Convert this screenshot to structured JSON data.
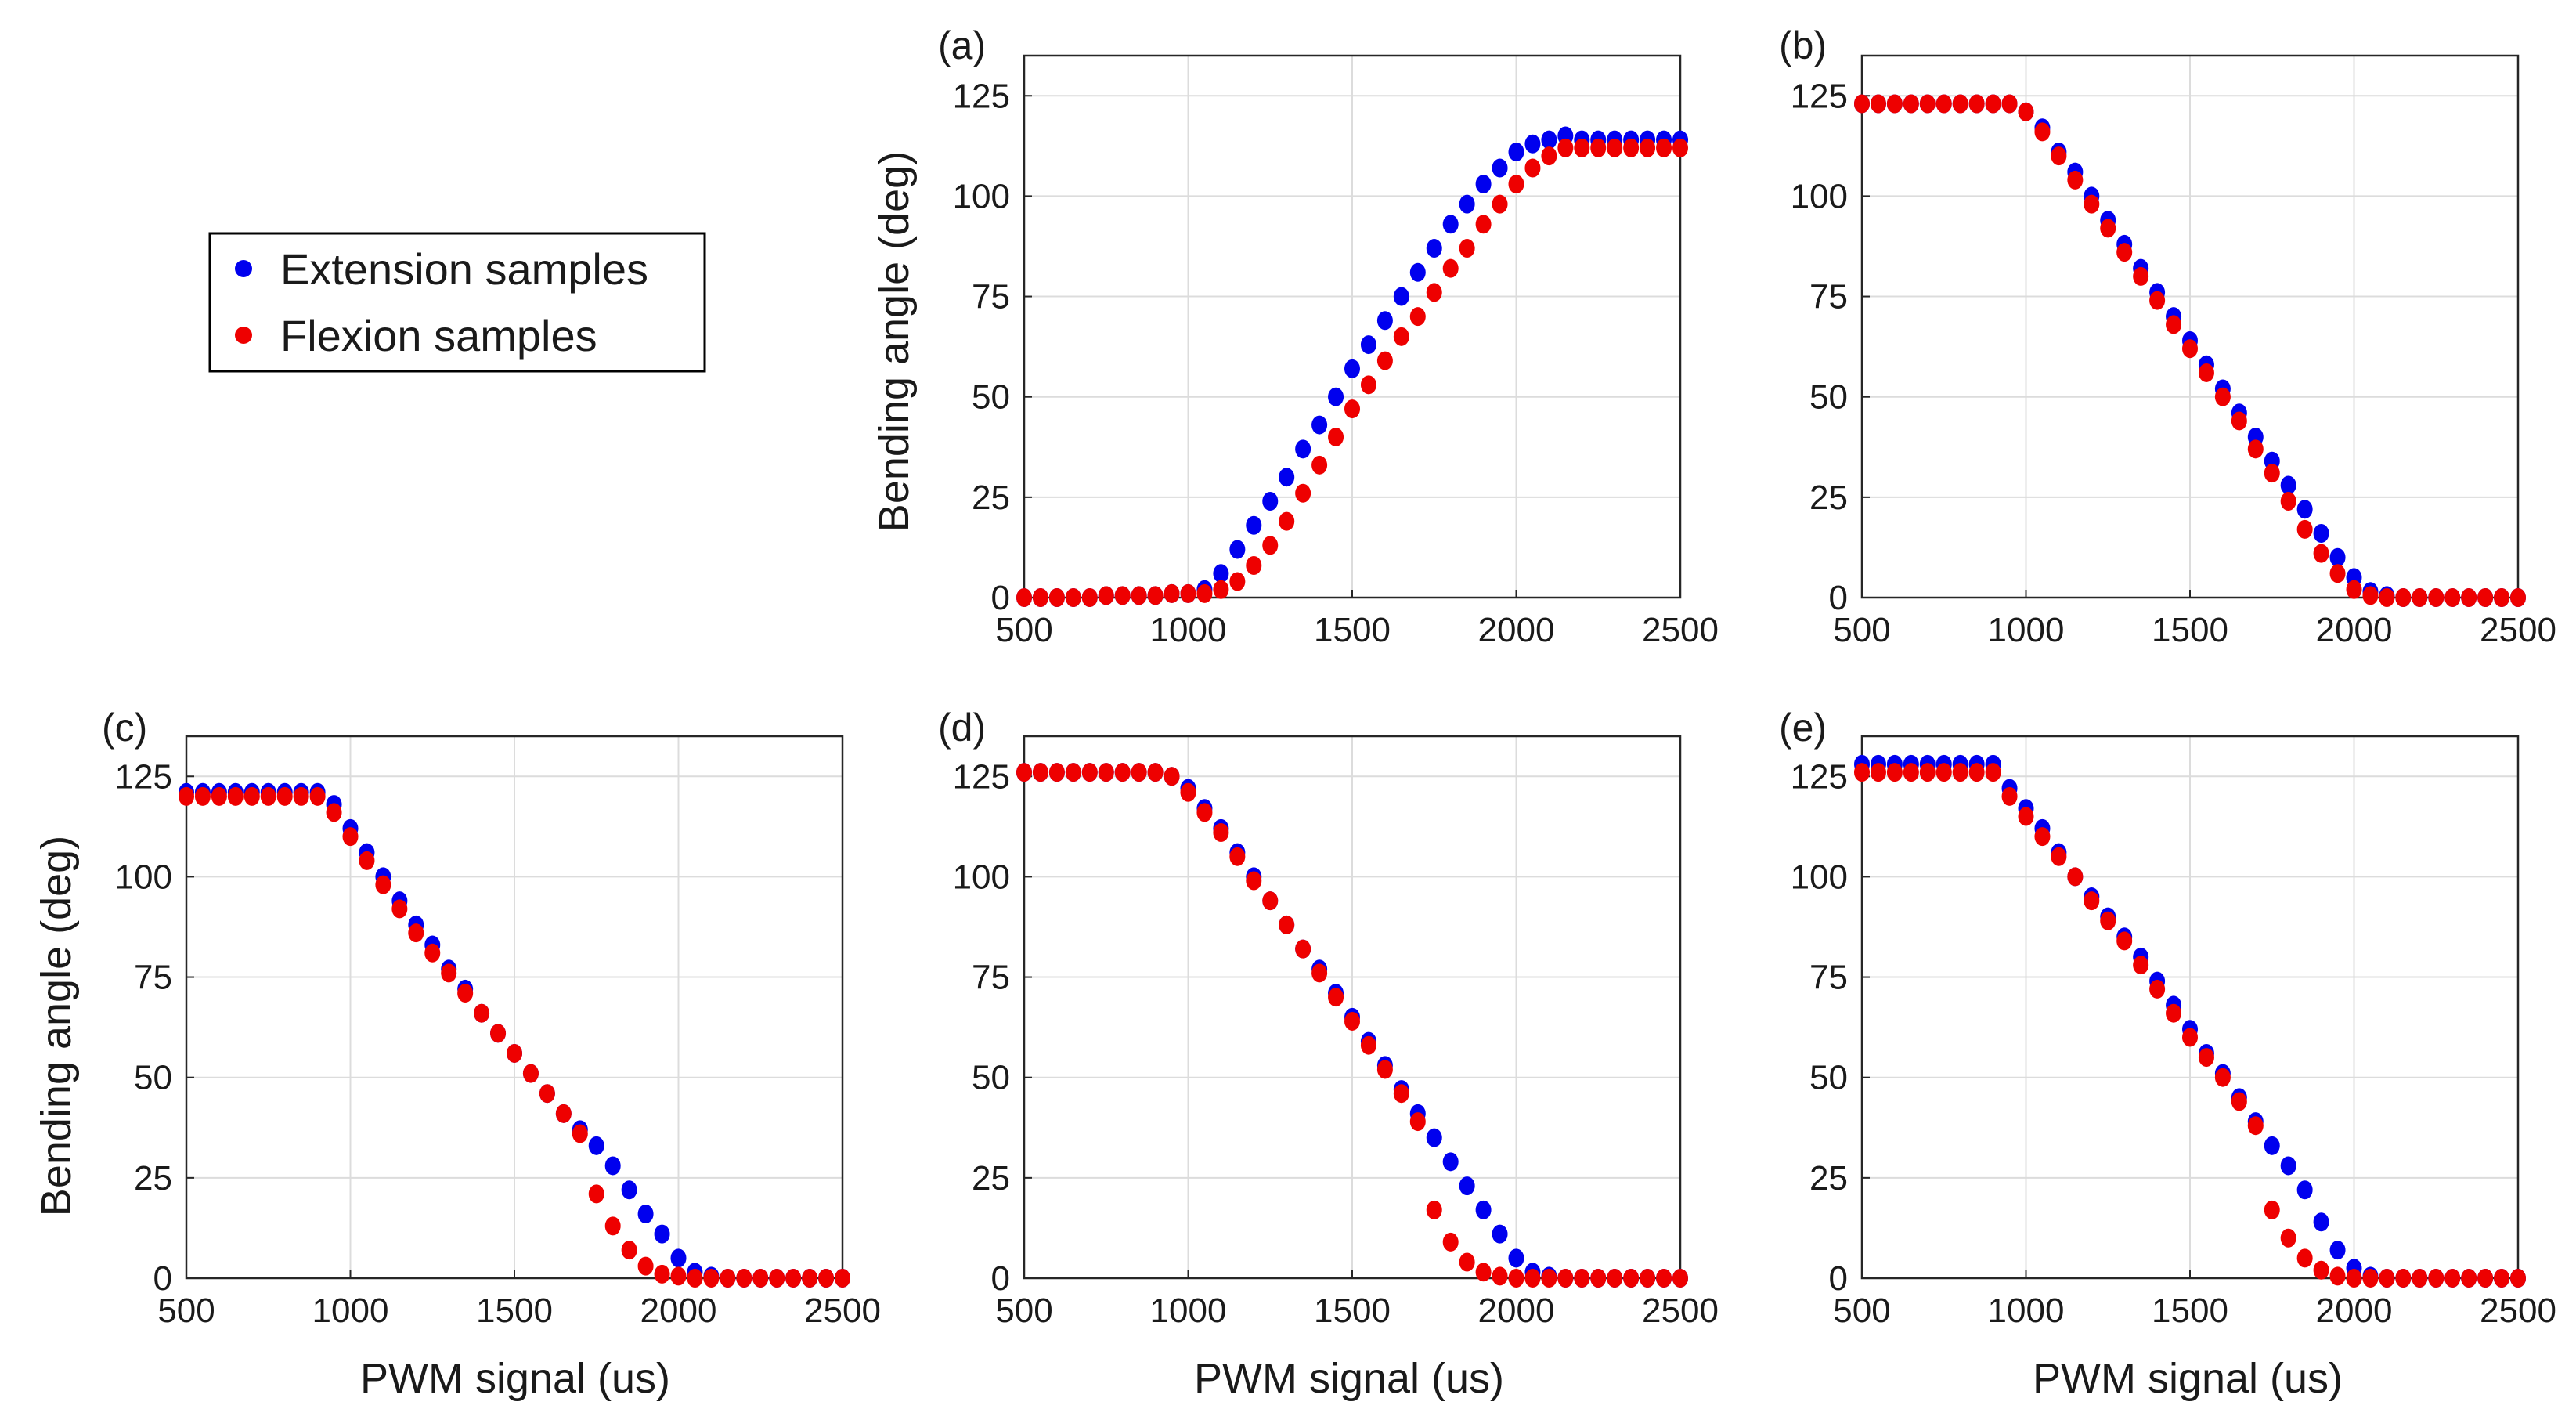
{
  "figure": {
    "legend": [
      {
        "label": "Extension samples",
        "color": "#0000ee"
      },
      {
        "label": "Flexion samples",
        "color": "#ee0000"
      }
    ]
  },
  "chart_data": [
    {
      "type": "scatter",
      "panel": "(a)",
      "xlabel": "",
      "ylabel": "Bending angle (deg)",
      "xlim": [
        500,
        2500
      ],
      "ylim": [
        0,
        135
      ],
      "xticks": [
        500,
        1000,
        1500,
        2000,
        2500
      ],
      "yticks": [
        0,
        25,
        50,
        75,
        100,
        125
      ],
      "grid": true,
      "series": [
        {
          "name": "Extension samples",
          "color": "#0000ee",
          "x": [
            500,
            550,
            600,
            650,
            700,
            750,
            800,
            850,
            900,
            950,
            1000,
            1050,
            1100,
            1150,
            1200,
            1250,
            1300,
            1350,
            1400,
            1450,
            1500,
            1550,
            1600,
            1650,
            1700,
            1750,
            1800,
            1850,
            1900,
            1950,
            2000,
            2050,
            2100,
            2150,
            2200,
            2250,
            2300,
            2350,
            2400,
            2450,
            2500
          ],
          "y": [
            0,
            0,
            0,
            0,
            0,
            0.5,
            0.5,
            0.5,
            0.5,
            1,
            1,
            2,
            6,
            12,
            18,
            24,
            30,
            37,
            43,
            50,
            57,
            63,
            69,
            75,
            81,
            87,
            93,
            98,
            103,
            107,
            111,
            113,
            114,
            115,
            114,
            114,
            114,
            114,
            114,
            114,
            114
          ]
        },
        {
          "name": "Flexion samples",
          "color": "#ee0000",
          "x": [
            500,
            550,
            600,
            650,
            700,
            750,
            800,
            850,
            900,
            950,
            1000,
            1050,
            1100,
            1150,
            1200,
            1250,
            1300,
            1350,
            1400,
            1450,
            1500,
            1550,
            1600,
            1650,
            1700,
            1750,
            1800,
            1850,
            1900,
            1950,
            2000,
            2050,
            2100,
            2150,
            2200,
            2250,
            2300,
            2350,
            2400,
            2450,
            2500
          ],
          "y": [
            0,
            0,
            0,
            0,
            0,
            0.5,
            0.5,
            0.5,
            0.5,
            1,
            1,
            1,
            2,
            4,
            8,
            13,
            19,
            26,
            33,
            40,
            47,
            53,
            59,
            65,
            70,
            76,
            82,
            87,
            93,
            98,
            103,
            107,
            110,
            112,
            112,
            112,
            112,
            112,
            112,
            112,
            112
          ]
        }
      ]
    },
    {
      "type": "scatter",
      "panel": "(b)",
      "xlabel": "",
      "ylabel": "",
      "xlim": [
        500,
        2500
      ],
      "ylim": [
        0,
        135
      ],
      "xticks": [
        500,
        1000,
        1500,
        2000,
        2500
      ],
      "yticks": [
        0,
        25,
        50,
        75,
        100,
        125
      ],
      "grid": true,
      "series": [
        {
          "name": "Extension samples",
          "color": "#0000ee",
          "x": [
            500,
            550,
            600,
            650,
            700,
            750,
            800,
            850,
            900,
            950,
            1000,
            1050,
            1100,
            1150,
            1200,
            1250,
            1300,
            1350,
            1400,
            1450,
            1500,
            1550,
            1600,
            1650,
            1700,
            1750,
            1800,
            1850,
            1900,
            1950,
            2000,
            2050,
            2100,
            2150,
            2200,
            2250,
            2300,
            2350,
            2400,
            2450,
            2500
          ],
          "y": [
            123,
            123,
            123,
            123,
            123,
            123,
            123,
            123,
            123,
            123,
            121,
            117,
            111,
            106,
            100,
            94,
            88,
            82,
            76,
            70,
            64,
            58,
            52,
            46,
            40,
            34,
            28,
            22,
            16,
            10,
            5,
            1.5,
            0.5,
            0,
            0,
            0,
            0,
            0,
            0,
            0,
            0
          ]
        },
        {
          "name": "Flexion samples",
          "color": "#ee0000",
          "x": [
            500,
            550,
            600,
            650,
            700,
            750,
            800,
            850,
            900,
            950,
            1000,
            1050,
            1100,
            1150,
            1200,
            1250,
            1300,
            1350,
            1400,
            1450,
            1500,
            1550,
            1600,
            1650,
            1700,
            1750,
            1800,
            1850,
            1900,
            1950,
            2000,
            2050,
            2100,
            2150,
            2200,
            2250,
            2300,
            2350,
            2400,
            2450,
            2500
          ],
          "y": [
            123,
            123,
            123,
            123,
            123,
            123,
            123,
            123,
            123,
            123,
            121,
            116,
            110,
            104,
            98,
            92,
            86,
            80,
            74,
            68,
            62,
            56,
            50,
            44,
            37,
            31,
            24,
            17,
            11,
            6,
            2,
            0.5,
            0,
            0,
            0,
            0,
            0,
            0,
            0,
            0,
            0
          ]
        }
      ]
    },
    {
      "type": "scatter",
      "panel": "(c)",
      "xlabel": "PWM signal (us)",
      "ylabel": "Bending angle (deg)",
      "xlim": [
        500,
        2500
      ],
      "ylim": [
        0,
        135
      ],
      "xticks": [
        500,
        1000,
        1500,
        2000,
        2500
      ],
      "yticks": [
        0,
        25,
        50,
        75,
        100,
        125
      ],
      "grid": true,
      "series": [
        {
          "name": "Extension samples",
          "color": "#0000ee",
          "x": [
            500,
            550,
            600,
            650,
            700,
            750,
            800,
            850,
            900,
            950,
            1000,
            1050,
            1100,
            1150,
            1200,
            1250,
            1300,
            1350,
            1400,
            1450,
            1500,
            1550,
            1600,
            1650,
            1700,
            1750,
            1800,
            1850,
            1900,
            1950,
            2000,
            2050,
            2100,
            2150,
            2200,
            2250,
            2300,
            2350,
            2400,
            2450,
            2500
          ],
          "y": [
            121,
            121,
            121,
            121,
            121,
            121,
            121,
            121,
            121,
            118,
            112,
            106,
            100,
            94,
            88,
            83,
            77,
            72,
            66,
            61,
            56,
            51,
            46,
            41,
            37,
            33,
            28,
            22,
            16,
            11,
            5,
            1.5,
            0.5,
            0,
            0,
            0,
            0,
            0,
            0,
            0,
            0
          ]
        },
        {
          "name": "Flexion samples",
          "color": "#ee0000",
          "x": [
            500,
            550,
            600,
            650,
            700,
            750,
            800,
            850,
            900,
            950,
            1000,
            1050,
            1100,
            1150,
            1200,
            1250,
            1300,
            1350,
            1400,
            1450,
            1500,
            1550,
            1600,
            1650,
            1700,
            1750,
            1800,
            1850,
            1900,
            1950,
            2000,
            2050,
            2100,
            2150,
            2200,
            2250,
            2300,
            2350,
            2400,
            2450,
            2500
          ],
          "y": [
            120,
            120,
            120,
            120,
            120,
            120,
            120,
            120,
            120,
            116,
            110,
            104,
            98,
            92,
            86,
            81,
            76,
            71,
            66,
            61,
            56,
            51,
            46,
            41,
            36,
            21,
            13,
            7,
            3,
            1,
            0.5,
            0,
            0,
            0,
            0,
            0,
            0,
            0,
            0,
            0,
            0
          ]
        }
      ]
    },
    {
      "type": "scatter",
      "panel": "(d)",
      "xlabel": "PWM signal (us)",
      "ylabel": "",
      "xlim": [
        500,
        2500
      ],
      "ylim": [
        0,
        135
      ],
      "xticks": [
        500,
        1000,
        1500,
        2000,
        2500
      ],
      "yticks": [
        0,
        25,
        50,
        75,
        100,
        125
      ],
      "grid": true,
      "series": [
        {
          "name": "Extension samples",
          "color": "#0000ee",
          "x": [
            500,
            550,
            600,
            650,
            700,
            750,
            800,
            850,
            900,
            950,
            1000,
            1050,
            1100,
            1150,
            1200,
            1250,
            1300,
            1350,
            1400,
            1450,
            1500,
            1550,
            1600,
            1650,
            1700,
            1750,
            1800,
            1850,
            1900,
            1950,
            2000,
            2050,
            2100,
            2150,
            2200,
            2250,
            2300,
            2350,
            2400,
            2450,
            2500
          ],
          "y": [
            126,
            126,
            126,
            126,
            126,
            126,
            126,
            126,
            126,
            125,
            122,
            117,
            112,
            106,
            100,
            94,
            88,
            82,
            77,
            71,
            65,
            59,
            53,
            47,
            41,
            35,
            29,
            23,
            17,
            11,
            5,
            1.5,
            0.5,
            0,
            0,
            0,
            0,
            0,
            0,
            0,
            0
          ]
        },
        {
          "name": "Flexion samples",
          "color": "#ee0000",
          "x": [
            500,
            550,
            600,
            650,
            700,
            750,
            800,
            850,
            900,
            950,
            1000,
            1050,
            1100,
            1150,
            1200,
            1250,
            1300,
            1350,
            1400,
            1450,
            1500,
            1550,
            1600,
            1650,
            1700,
            1750,
            1800,
            1850,
            1900,
            1950,
            2000,
            2050,
            2100,
            2150,
            2200,
            2250,
            2300,
            2350,
            2400,
            2450,
            2500
          ],
          "y": [
            126,
            126,
            126,
            126,
            126,
            126,
            126,
            126,
            126,
            125,
            121,
            116,
            111,
            105,
            99,
            94,
            88,
            82,
            76,
            70,
            64,
            58,
            52,
            46,
            39,
            17,
            9,
            4,
            1.5,
            0.5,
            0,
            0,
            0,
            0,
            0,
            0,
            0,
            0,
            0,
            0,
            0
          ]
        }
      ]
    },
    {
      "type": "scatter",
      "panel": "(e)",
      "xlabel": "PWM signal (us)",
      "ylabel": "",
      "xlim": [
        500,
        2500
      ],
      "ylim": [
        0,
        135
      ],
      "xticks": [
        500,
        1000,
        1500,
        2000,
        2500
      ],
      "yticks": [
        0,
        25,
        50,
        75,
        100,
        125
      ],
      "grid": true,
      "series": [
        {
          "name": "Extension samples",
          "color": "#0000ee",
          "x": [
            500,
            550,
            600,
            650,
            700,
            750,
            800,
            850,
            900,
            950,
            1000,
            1050,
            1100,
            1150,
            1200,
            1250,
            1300,
            1350,
            1400,
            1450,
            1500,
            1550,
            1600,
            1650,
            1700,
            1750,
            1800,
            1850,
            1900,
            1950,
            2000,
            2050,
            2100,
            2150,
            2200,
            2250,
            2300,
            2350,
            2400,
            2450,
            2500
          ],
          "y": [
            128,
            128,
            128,
            128,
            128,
            128,
            128,
            128,
            128,
            122,
            117,
            112,
            106,
            100,
            95,
            90,
            85,
            80,
            74,
            68,
            62,
            56,
            51,
            45,
            39,
            33,
            28,
            22,
            14,
            7,
            2.5,
            0.5,
            0,
            0,
            0,
            0,
            0,
            0,
            0,
            0,
            0
          ]
        },
        {
          "name": "Flexion samples",
          "color": "#ee0000",
          "x": [
            500,
            550,
            600,
            650,
            700,
            750,
            800,
            850,
            900,
            950,
            1000,
            1050,
            1100,
            1150,
            1200,
            1250,
            1300,
            1350,
            1400,
            1450,
            1500,
            1550,
            1600,
            1650,
            1700,
            1750,
            1800,
            1850,
            1900,
            1950,
            2000,
            2050,
            2100,
            2150,
            2200,
            2250,
            2300,
            2350,
            2400,
            2450,
            2500
          ],
          "y": [
            126,
            126,
            126,
            126,
            126,
            126,
            126,
            126,
            126,
            120,
            115,
            110,
            105,
            100,
            94,
            89,
            84,
            78,
            72,
            66,
            60,
            55,
            50,
            44,
            38,
            17,
            10,
            5,
            2,
            0.5,
            0,
            0,
            0,
            0,
            0,
            0,
            0,
            0,
            0,
            0,
            0
          ]
        }
      ]
    }
  ]
}
